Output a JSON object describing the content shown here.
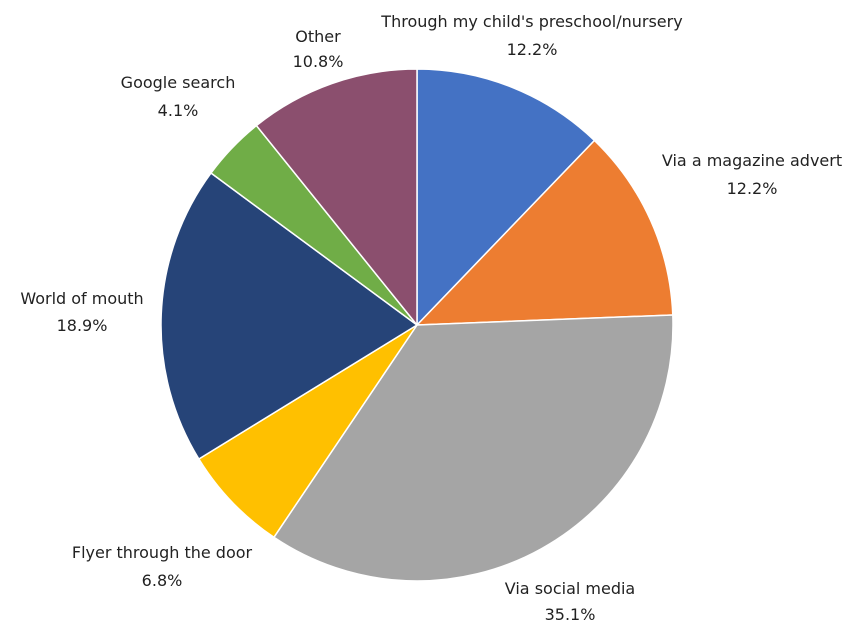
{
  "chart_data": {
    "type": "pie",
    "title": "",
    "start_angle_deg": 0,
    "direction": "clockwise",
    "slices": [
      {
        "label": "Through my child's preschool/nursery",
        "value_label": "12.2%",
        "value": 12.2,
        "color": "#4472C4"
      },
      {
        "label": "Via a magazine advert",
        "value_label": "12.2%",
        "value": 12.2,
        "color": "#ED7D31"
      },
      {
        "label": "Via social media",
        "value_label": "35.1%",
        "value": 35.1,
        "color": "#A5A5A5"
      },
      {
        "label": "Flyer through the door",
        "value_label": "6.8%",
        "value": 6.8,
        "color": "#FFC000"
      },
      {
        "label": "World of mouth",
        "value_label": "18.9%",
        "value": 18.9,
        "color": "#264478"
      },
      {
        "label": "Google search",
        "value_label": "4.1%",
        "value": 4.1,
        "color": "#70AD47"
      },
      {
        "label": "Other",
        "value_label": "10.8%",
        "value": 10.8,
        "color": "#8B4F6E"
      }
    ]
  }
}
